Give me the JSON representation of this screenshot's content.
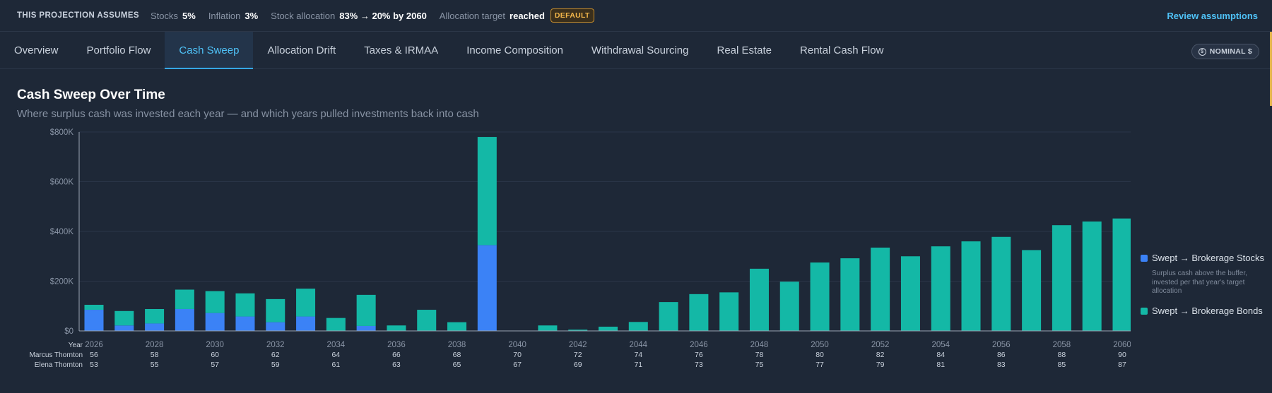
{
  "assumptions": {
    "title": "THIS PROJECTION ASSUMES",
    "stocks_label": "Stocks",
    "stocks_value": "5%",
    "inflation_label": "Inflation",
    "inflation_value": "3%",
    "allocation_label": "Stock allocation",
    "allocation_value": "83% → 20% by 2060",
    "target_label": "Allocation target",
    "target_value": "reached",
    "badge": "DEFAULT",
    "review_link": "Review assumptions"
  },
  "tabs": [
    {
      "label": "Overview"
    },
    {
      "label": "Portfolio Flow"
    },
    {
      "label": "Cash Sweep"
    },
    {
      "label": "Allocation Drift"
    },
    {
      "label": "Taxes & IRMAA"
    },
    {
      "label": "Income Composition"
    },
    {
      "label": "Withdrawal Sourcing"
    },
    {
      "label": "Real Estate"
    },
    {
      "label": "Rental Cash Flow"
    }
  ],
  "active_tab": "Cash Sweep",
  "currency_toggle": "NOMINAL $",
  "chart_title": "Cash Sweep Over Time",
  "chart_subtitle": "Where surplus cash was invested each year — and which years pulled investments back into cash",
  "legend": {
    "stocks_name": "Swept → Brokerage Stocks",
    "stocks_desc": "Surplus cash above the buffer, invested per that year's target allocation",
    "bonds_name": "Swept → Brokerage Bonds"
  },
  "colors": {
    "stocks": "#3b82f6",
    "bonds": "#14b8a6",
    "accent": "#4fc2f7",
    "badge": "#f2b64a"
  },
  "chart_data": {
    "type": "bar",
    "stacked": true,
    "x": [
      2026,
      2027,
      2028,
      2029,
      2030,
      2031,
      2032,
      2033,
      2034,
      2035,
      2036,
      2037,
      2038,
      2039,
      2040,
      2041,
      2042,
      2043,
      2044,
      2045,
      2046,
      2047,
      2048,
      2049,
      2050,
      2051,
      2052,
      2053,
      2054,
      2055,
      2056,
      2057,
      2058,
      2059,
      2060
    ],
    "series": [
      {
        "name": "Swept → Brokerage Stocks",
        "values": [
          85000,
          22000,
          30000,
          88000,
          72000,
          58000,
          35000,
          58000,
          0,
          20000,
          0,
          0,
          0,
          345000,
          0,
          0,
          0,
          0,
          0,
          0,
          0,
          0,
          0,
          0,
          0,
          0,
          0,
          0,
          0,
          0,
          0,
          0,
          0,
          0,
          0
        ]
      },
      {
        "name": "Swept → Brokerage Bonds",
        "values": [
          20000,
          58000,
          58000,
          78000,
          88000,
          93000,
          93000,
          112000,
          52000,
          125000,
          22000,
          85000,
          35000,
          435000,
          0,
          22000,
          5000,
          17000,
          36000,
          116000,
          148000,
          155000,
          250000,
          198000,
          275000,
          292000,
          335000,
          300000,
          340000,
          360000,
          378000,
          325000,
          425000,
          440000,
          452000
        ]
      }
    ],
    "ylim": [
      0,
      800000
    ],
    "y_ticks": [
      "$0",
      "$200K",
      "$400K",
      "$600K",
      "$800K"
    ],
    "x_tick_labels": [
      "2026",
      "2028",
      "2030",
      "2032",
      "2034",
      "2036",
      "2038",
      "2040",
      "2042",
      "2044",
      "2046",
      "2048",
      "2050",
      "2052",
      "2054",
      "2056",
      "2058",
      "2060"
    ],
    "row_labels": {
      "year": "Year",
      "person1": "Marcus Thornton",
      "person2": "Elena Thornton"
    },
    "person1_ages": [
      "56",
      "58",
      "60",
      "62",
      "64",
      "66",
      "68",
      "70",
      "72",
      "74",
      "76",
      "78",
      "80",
      "82",
      "84",
      "86",
      "88",
      "90"
    ],
    "person2_ages": [
      "53",
      "55",
      "57",
      "59",
      "61",
      "63",
      "65",
      "67",
      "69",
      "71",
      "73",
      "75",
      "77",
      "79",
      "81",
      "83",
      "85",
      "87"
    ],
    "grid": true,
    "legend_position": "right"
  }
}
